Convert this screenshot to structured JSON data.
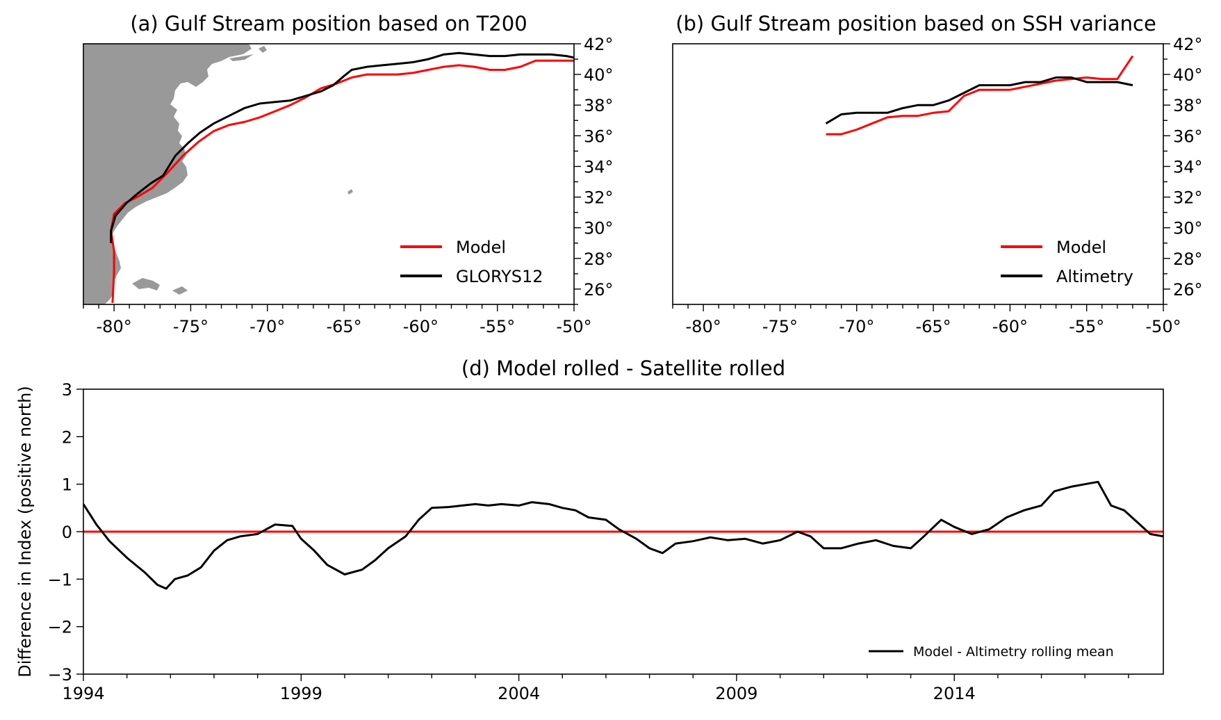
{
  "panels": {
    "a": {
      "title": "(a) Gulf Stream position based on T200",
      "legend": [
        "Model",
        "GLORYS12"
      ]
    },
    "b": {
      "title": "(b) Gulf Stream position based on SSH variance",
      "legend": [
        "Model",
        "Altimetry"
      ]
    },
    "d": {
      "title": "(d) Model rolled - Satellite rolled",
      "ylabel": "Difference in Index (positive north)",
      "legend": [
        "Model - Altimetry rolling mean"
      ]
    }
  },
  "colors": {
    "model": "#ff0000",
    "obs": "#000000",
    "land": "#999999",
    "zero": "#ff0000"
  },
  "map_axes": {
    "lon_ticks": [
      "-80°",
      "-75°",
      "-70°",
      "-65°",
      "-60°",
      "-55°",
      "-50°"
    ],
    "lat_ticks": [
      "26°",
      "28°",
      "30°",
      "32°",
      "34°",
      "36°",
      "38°",
      "40°",
      "42°"
    ]
  },
  "ts_axes": {
    "x_ticks": [
      "1994",
      "1999",
      "2004",
      "2009",
      "2014"
    ],
    "y_ticks": [
      "3",
      "2",
      "1",
      "0",
      "−1",
      "−2",
      "−3"
    ]
  },
  "chart_data": [
    {
      "type": "line",
      "title": "(a) Gulf Stream position based on T200",
      "xlim": [
        -82,
        -50
      ],
      "ylim": [
        25,
        42
      ],
      "series": [
        {
          "name": "Model",
          "x": [
            -80.1,
            -80.0,
            -80.0,
            -80.2,
            -80.0,
            -79.3,
            -78.5,
            -77.5,
            -76.5,
            -75.5,
            -74.5,
            -73.5,
            -72.5,
            -71.5,
            -70.5,
            -69.5,
            -68.5,
            -67.5,
            -66.5,
            -65.5,
            -64.5,
            -63.5,
            -62.5,
            -61.5,
            -60.5,
            -59.5,
            -58.5,
            -57.5,
            -56.5,
            -55.5,
            -54.5,
            -53.5,
            -52.5,
            -51.5,
            -50.5,
            -50
          ],
          "y": [
            25.1,
            27.0,
            28.5,
            29.8,
            30.9,
            31.6,
            32.0,
            32.6,
            33.6,
            34.7,
            35.6,
            36.3,
            36.7,
            36.9,
            37.2,
            37.6,
            38.0,
            38.5,
            39.1,
            39.4,
            39.8,
            40.0,
            40.0,
            40.0,
            40.1,
            40.3,
            40.5,
            40.6,
            40.5,
            40.3,
            40.3,
            40.5,
            40.9,
            40.9,
            40.9,
            40.9
          ]
        },
        {
          "name": "GLORYS12",
          "x": [
            -80.2,
            -80.2,
            -79.9,
            -79.2,
            -78.5,
            -77.6,
            -76.8,
            -76.0,
            -75.2,
            -74.4,
            -73.5,
            -72.5,
            -71.5,
            -70.5,
            -69.5,
            -68.5,
            -67.5,
            -66.5,
            -65.7,
            -65.0,
            -64.5,
            -63.5,
            -62.5,
            -61.5,
            -60.5,
            -59.5,
            -58.5,
            -57.5,
            -56.5,
            -55.5,
            -54.5,
            -53.5,
            -52.5,
            -51.5,
            -50.5,
            -50
          ],
          "y": [
            29.0,
            29.8,
            30.8,
            31.6,
            32.2,
            32.9,
            33.4,
            34.7,
            35.5,
            36.2,
            36.8,
            37.3,
            37.8,
            38.1,
            38.2,
            38.3,
            38.6,
            38.9,
            39.3,
            39.9,
            40.3,
            40.5,
            40.6,
            40.7,
            40.8,
            41.0,
            41.3,
            41.4,
            41.3,
            41.2,
            41.2,
            41.3,
            41.3,
            41.3,
            41.2,
            41.1
          ]
        }
      ]
    },
    {
      "type": "line",
      "title": "(b) Gulf Stream position based on SSH variance",
      "xlim": [
        -82,
        -50
      ],
      "ylim": [
        25,
        42
      ],
      "series": [
        {
          "name": "Model",
          "x": [
            -72,
            -71,
            -70,
            -69,
            -68,
            -67,
            -66,
            -65,
            -64,
            -63,
            -62,
            -61,
            -60,
            -59,
            -58,
            -57,
            -56,
            -55,
            -54,
            -53,
            -52
          ],
          "y": [
            36.1,
            36.1,
            36.4,
            36.8,
            37.2,
            37.3,
            37.3,
            37.5,
            37.6,
            38.6,
            39.0,
            39.0,
            39.0,
            39.2,
            39.4,
            39.6,
            39.7,
            39.8,
            39.7,
            39.7,
            41.2
          ]
        },
        {
          "name": "Altimetry",
          "x": [
            -72,
            -71,
            -70,
            -69,
            -68,
            -67,
            -66,
            -65,
            -64,
            -63,
            -62,
            -61,
            -60,
            -59,
            -58,
            -57,
            -56,
            -55,
            -54,
            -53,
            -52
          ],
          "y": [
            36.8,
            37.4,
            37.5,
            37.5,
            37.5,
            37.8,
            38.0,
            38.0,
            38.3,
            38.8,
            39.3,
            39.3,
            39.3,
            39.5,
            39.5,
            39.8,
            39.8,
            39.5,
            39.5,
            39.5,
            39.3
          ]
        }
      ]
    },
    {
      "type": "line",
      "title": "(d) Model rolled - Satellite rolled",
      "ylabel": "Difference in Index (positive north)",
      "xlim": [
        1994,
        2018.8
      ],
      "ylim": [
        -3,
        3
      ],
      "x_ticks": [
        1994,
        1999,
        2004,
        2009,
        2014
      ],
      "hline": 0,
      "series": [
        {
          "name": "Model - Altimetry rolling mean",
          "x": [
            1994.0,
            1994.3,
            1994.6,
            1995.0,
            1995.4,
            1995.7,
            1995.9,
            1996.1,
            1996.4,
            1996.7,
            1997.0,
            1997.3,
            1997.6,
            1998.0,
            1998.4,
            1998.8,
            1999.0,
            1999.3,
            1999.6,
            2000.0,
            2000.4,
            2000.7,
            2001.0,
            2001.4,
            2001.7,
            2002.0,
            2002.4,
            2002.7,
            2003.0,
            2003.3,
            2003.6,
            2004.0,
            2004.3,
            2004.7,
            2005.0,
            2005.3,
            2005.6,
            2006.0,
            2006.3,
            2006.7,
            2007.0,
            2007.3,
            2007.6,
            2008.0,
            2008.4,
            2008.8,
            2009.2,
            2009.6,
            2010.0,
            2010.4,
            2010.7,
            2011.0,
            2011.4,
            2011.8,
            2012.2,
            2012.6,
            2013.0,
            2013.3,
            2013.7,
            2014.0,
            2014.4,
            2014.8,
            2015.2,
            2015.6,
            2016.0,
            2016.3,
            2016.7,
            2017.0,
            2017.3,
            2017.6,
            2017.9,
            2018.2,
            2018.5,
            2018.8
          ],
          "y": [
            0.58,
            0.15,
            -0.2,
            -0.55,
            -0.85,
            -1.12,
            -1.2,
            -1.0,
            -0.92,
            -0.75,
            -0.4,
            -0.18,
            -0.1,
            -0.05,
            0.15,
            0.12,
            -0.15,
            -0.4,
            -0.7,
            -0.9,
            -0.8,
            -0.6,
            -0.35,
            -0.1,
            0.25,
            0.5,
            0.52,
            0.55,
            0.58,
            0.55,
            0.58,
            0.55,
            0.62,
            0.58,
            0.5,
            0.45,
            0.3,
            0.25,
            0.05,
            -0.15,
            -0.35,
            -0.45,
            -0.25,
            -0.2,
            -0.12,
            -0.18,
            -0.15,
            -0.25,
            -0.18,
            0.0,
            -0.1,
            -0.35,
            -0.35,
            -0.25,
            -0.18,
            -0.3,
            -0.35,
            -0.1,
            0.25,
            0.1,
            -0.05,
            0.05,
            0.3,
            0.45,
            0.55,
            0.85,
            0.95,
            1.0,
            1.05,
            0.55,
            0.45,
            0.2,
            -0.05,
            -0.1
          ]
        }
      ]
    }
  ]
}
